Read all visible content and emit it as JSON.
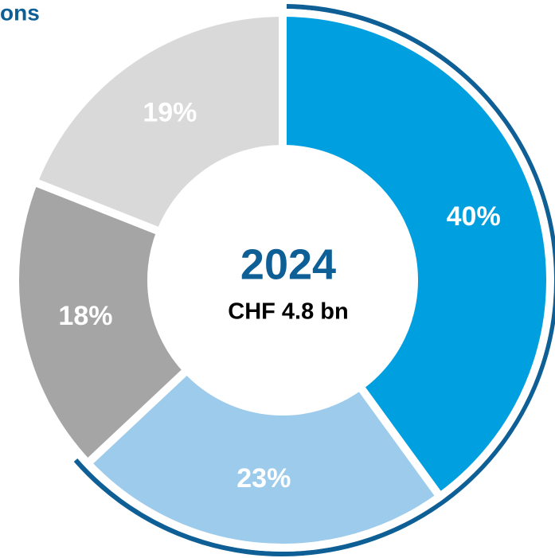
{
  "chart_data": {
    "type": "donut",
    "title": "ons",
    "center_title": "2024",
    "center_subtitle": "CHF 4.8 bn",
    "values": [
      40,
      23,
      18,
      19
    ],
    "value_labels": [
      "40%",
      "23%",
      "18%",
      "19%"
    ],
    "colors": [
      "#009fe0",
      "#9dcbec",
      "#a5a5a5",
      "#d9d9d9"
    ]
  }
}
